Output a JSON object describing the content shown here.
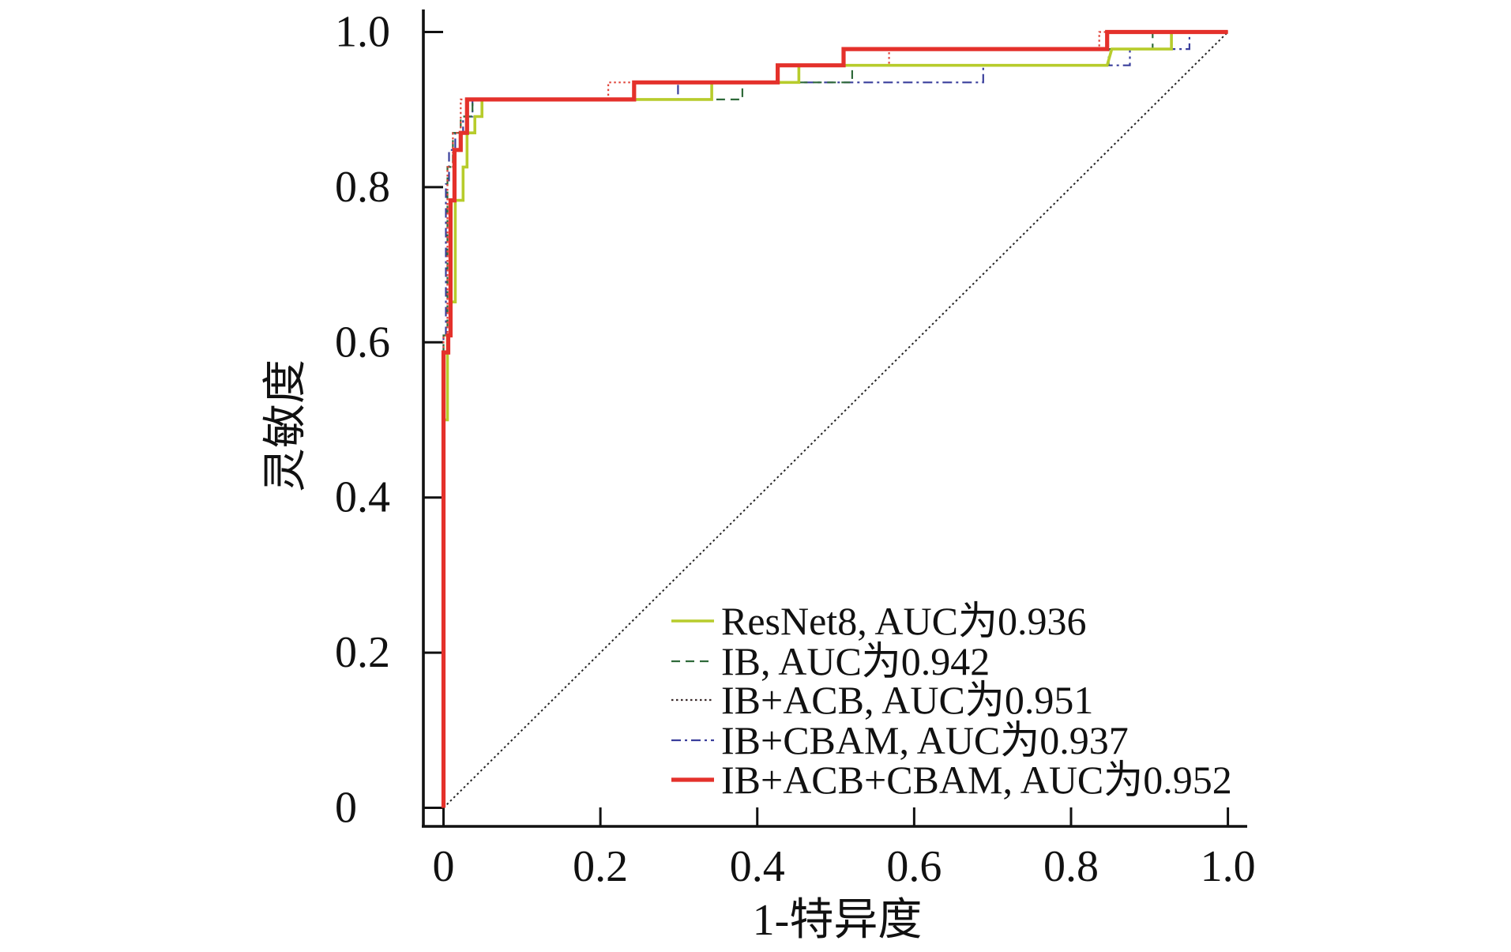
{
  "chart_data": {
    "type": "line",
    "title": "",
    "xlabel": "1-特异度",
    "ylabel": "灵敏度",
    "xlim": [
      0,
      1
    ],
    "ylim": [
      0,
      1
    ],
    "grid": false,
    "x_ticks": {
      "values": [
        0,
        0.2,
        0.4,
        0.6,
        0.8,
        1.0
      ],
      "labels": [
        "0",
        "0.2",
        "0.4",
        "0.6",
        "0.8",
        "1.0"
      ]
    },
    "y_ticks": {
      "values": [
        0,
        0.2,
        0.4,
        0.6,
        0.8,
        1.0
      ],
      "labels": [
        "0",
        "0.2",
        "0.4",
        "0.6",
        "0.8",
        "1.0"
      ]
    },
    "legend": {
      "position": "bottom-right"
    },
    "reference_line": {
      "x": [
        0,
        1
      ],
      "y": [
        0,
        1
      ],
      "color": "#222222",
      "style": "dotted"
    },
    "series": [
      {
        "name": "ResNet8, AUC为0.936",
        "color": "#b7cc2c",
        "style": "solid",
        "x": [
          0,
          0,
          0.005,
          0.005,
          0.009,
          0.009,
          0.015,
          0.015,
          0.025,
          0.025,
          0.03,
          0.03,
          0.04,
          0.04,
          0.049,
          0.049,
          0.342,
          0.342,
          0.453,
          0.453,
          0.846,
          0.852,
          0.928,
          0.928,
          1.0
        ],
        "y": [
          0,
          0.5,
          0.5,
          0.609,
          0.609,
          0.652,
          0.652,
          0.783,
          0.783,
          0.826,
          0.826,
          0.87,
          0.87,
          0.891,
          0.891,
          0.913,
          0.913,
          0.935,
          0.935,
          0.957,
          0.957,
          0.978,
          0.978,
          1.0,
          1.0
        ]
      },
      {
        "name": "IB, AUC为0.942",
        "color": "#2f6a3a",
        "style": "dashed",
        "x": [
          0,
          0,
          0.005,
          0.005,
          0.012,
          0.012,
          0.022,
          0.022,
          0.037,
          0.037,
          0.381,
          0.381,
          0.521,
          0.521,
          0.848,
          0.848,
          0.904,
          0.904,
          1.0
        ],
        "y": [
          0,
          0.609,
          0.609,
          0.826,
          0.826,
          0.87,
          0.87,
          0.891,
          0.891,
          0.913,
          0.913,
          0.935,
          0.935,
          0.957,
          0.957,
          0.978,
          0.978,
          1.0,
          1.0
        ]
      },
      {
        "name": "IB+ACB, AUC为0.951",
        "color": "#e0463c",
        "legend_color": "#3a2a2a",
        "style": "dotted",
        "x": [
          0,
          0,
          0.005,
          0.005,
          0.012,
          0.012,
          0.022,
          0.022,
          0.21,
          0.21,
          0.426,
          0.426,
          0.568,
          0.568,
          0.836,
          0.836,
          1.0
        ],
        "y": [
          0,
          0.609,
          0.609,
          0.826,
          0.826,
          0.87,
          0.87,
          0.913,
          0.913,
          0.935,
          0.935,
          0.957,
          0.957,
          0.978,
          0.978,
          1.0,
          1.0
        ]
      },
      {
        "name": "IB+CBAM, AUC为0.937",
        "color": "#3a3f9c",
        "style": "dash-dot",
        "x": [
          0,
          0,
          0.003,
          0.003,
          0.007,
          0.007,
          0.015,
          0.015,
          0.025,
          0.025,
          0.037,
          0.037,
          0.299,
          0.299,
          0.688,
          0.688,
          0.875,
          0.875,
          0.951,
          0.951,
          1.0
        ],
        "y": [
          0,
          0.609,
          0.609,
          0.804,
          0.804,
          0.848,
          0.848,
          0.87,
          0.87,
          0.891,
          0.891,
          0.913,
          0.913,
          0.935,
          0.935,
          0.957,
          0.957,
          0.978,
          0.978,
          1.0,
          1.0
        ]
      },
      {
        "name": "IB+ACB+CBAM, AUC为0.952",
        "color": "#e4312b",
        "style": "solid-thick",
        "x": [
          0,
          0,
          0.006,
          0.006,
          0.009,
          0.009,
          0.014,
          0.014,
          0.022,
          0.022,
          0.03,
          0.03,
          0.243,
          0.243,
          0.426,
          0.426,
          0.51,
          0.51,
          0.846,
          0.846,
          1.0
        ],
        "y": [
          0,
          0.587,
          0.587,
          0.609,
          0.609,
          0.783,
          0.783,
          0.848,
          0.848,
          0.87,
          0.87,
          0.913,
          0.913,
          0.935,
          0.935,
          0.957,
          0.957,
          0.978,
          0.978,
          1.0,
          1.0
        ]
      }
    ]
  }
}
